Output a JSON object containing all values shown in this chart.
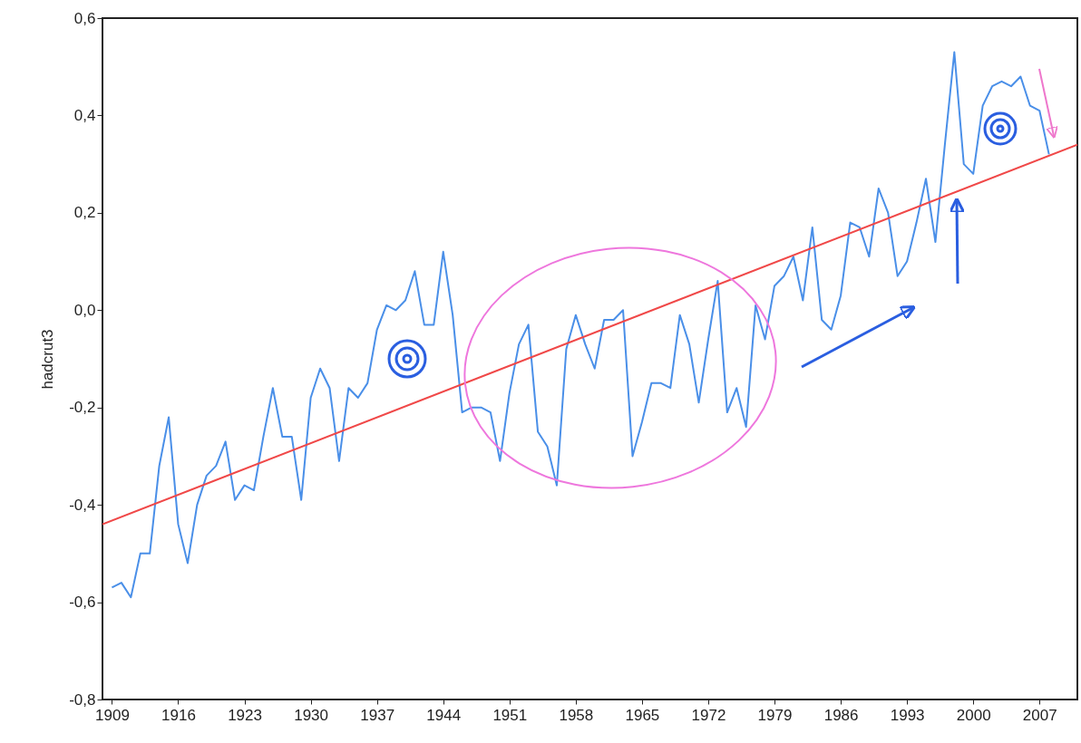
{
  "chart_data": {
    "type": "line",
    "ylabel": "hadcrut3",
    "xlim": [
      1908,
      2011
    ],
    "xticks": [
      1909,
      1916,
      1923,
      1930,
      1937,
      1944,
      1951,
      1958,
      1965,
      1972,
      1979,
      1986,
      1993,
      2000,
      2007
    ],
    "ylim": [
      -0.8,
      0.6
    ],
    "yticks": [
      {
        "value": -0.8,
        "label": "-0,8"
      },
      {
        "value": -0.6,
        "label": "-0,6"
      },
      {
        "value": -0.4,
        "label": "-0,4"
      },
      {
        "value": -0.2,
        "label": "-0,2"
      },
      {
        "value": 0,
        "label": "0,0"
      },
      {
        "value": 0.2,
        "label": "0,2"
      },
      {
        "value": 0.4,
        "label": "0,4"
      },
      {
        "value": 0.6,
        "label": "0,6"
      }
    ],
    "grid": false,
    "series": [
      {
        "color": "#4a8fe8",
        "x": [
          1909,
          1910,
          1911,
          1912,
          1913,
          1914,
          1915,
          1916,
          1917,
          1918,
          1919,
          1920,
          1921,
          1922,
          1923,
          1924,
          1925,
          1926,
          1927,
          1928,
          1929,
          1930,
          1931,
          1932,
          1933,
          1934,
          1935,
          1936,
          1937,
          1938,
          1939,
          1940,
          1941,
          1942,
          1943,
          1944,
          1945,
          1946,
          1947,
          1948,
          1949,
          1950,
          1951,
          1952,
          1953,
          1954,
          1955,
          1956,
          1957,
          1958,
          1959,
          1960,
          1961,
          1962,
          1963,
          1964,
          1965,
          1966,
          1967,
          1968,
          1969,
          1970,
          1971,
          1972,
          1973,
          1974,
          1975,
          1976,
          1977,
          1978,
          1979,
          1980,
          1981,
          1982,
          1983,
          1984,
          1985,
          1986,
          1987,
          1988,
          1989,
          1990,
          1991,
          1992,
          1993,
          1994,
          1995,
          1996,
          1997,
          1998,
          1999,
          2000,
          2001,
          2002,
          2003,
          2004,
          2005,
          2006,
          2007,
          2008
        ],
        "values": [
          -0.57,
          -0.56,
          -0.59,
          -0.5,
          -0.5,
          -0.32,
          -0.22,
          -0.44,
          -0.52,
          -0.4,
          -0.34,
          -0.32,
          -0.27,
          -0.39,
          -0.36,
          -0.37,
          -0.26,
          -0.16,
          -0.26,
          -0.26,
          -0.39,
          -0.18,
          -0.12,
          -0.16,
          -0.31,
          -0.16,
          -0.18,
          -0.15,
          -0.04,
          0.01,
          0.0,
          0.02,
          0.08,
          -0.03,
          -0.03,
          0.12,
          -0.01,
          -0.21,
          -0.2,
          -0.2,
          -0.21,
          -0.31,
          -0.17,
          -0.07,
          -0.03,
          -0.25,
          -0.28,
          -0.36,
          -0.08,
          -0.01,
          -0.07,
          -0.12,
          -0.02,
          -0.02,
          0.0,
          -0.3,
          -0.23,
          -0.15,
          -0.15,
          -0.16,
          -0.01,
          -0.07,
          -0.19,
          -0.06,
          0.06,
          -0.21,
          -0.16,
          -0.24,
          0.01,
          -0.06,
          0.05,
          0.07,
          0.11,
          0.02,
          0.17,
          -0.02,
          -0.04,
          0.03,
          0.18,
          0.17,
          0.11,
          0.25,
          0.2,
          0.07,
          0.1,
          0.18,
          0.27,
          0.14,
          0.34,
          0.53,
          0.3,
          0.28,
          0.42,
          0.46,
          0.47,
          0.46,
          0.48,
          0.42,
          0.41,
          0.32
        ]
      },
      {
        "type": "line",
        "color": "#f04848",
        "x": [
          1908,
          2011
        ],
        "values": [
          -0.44,
          0.34
        ]
      }
    ]
  }
}
